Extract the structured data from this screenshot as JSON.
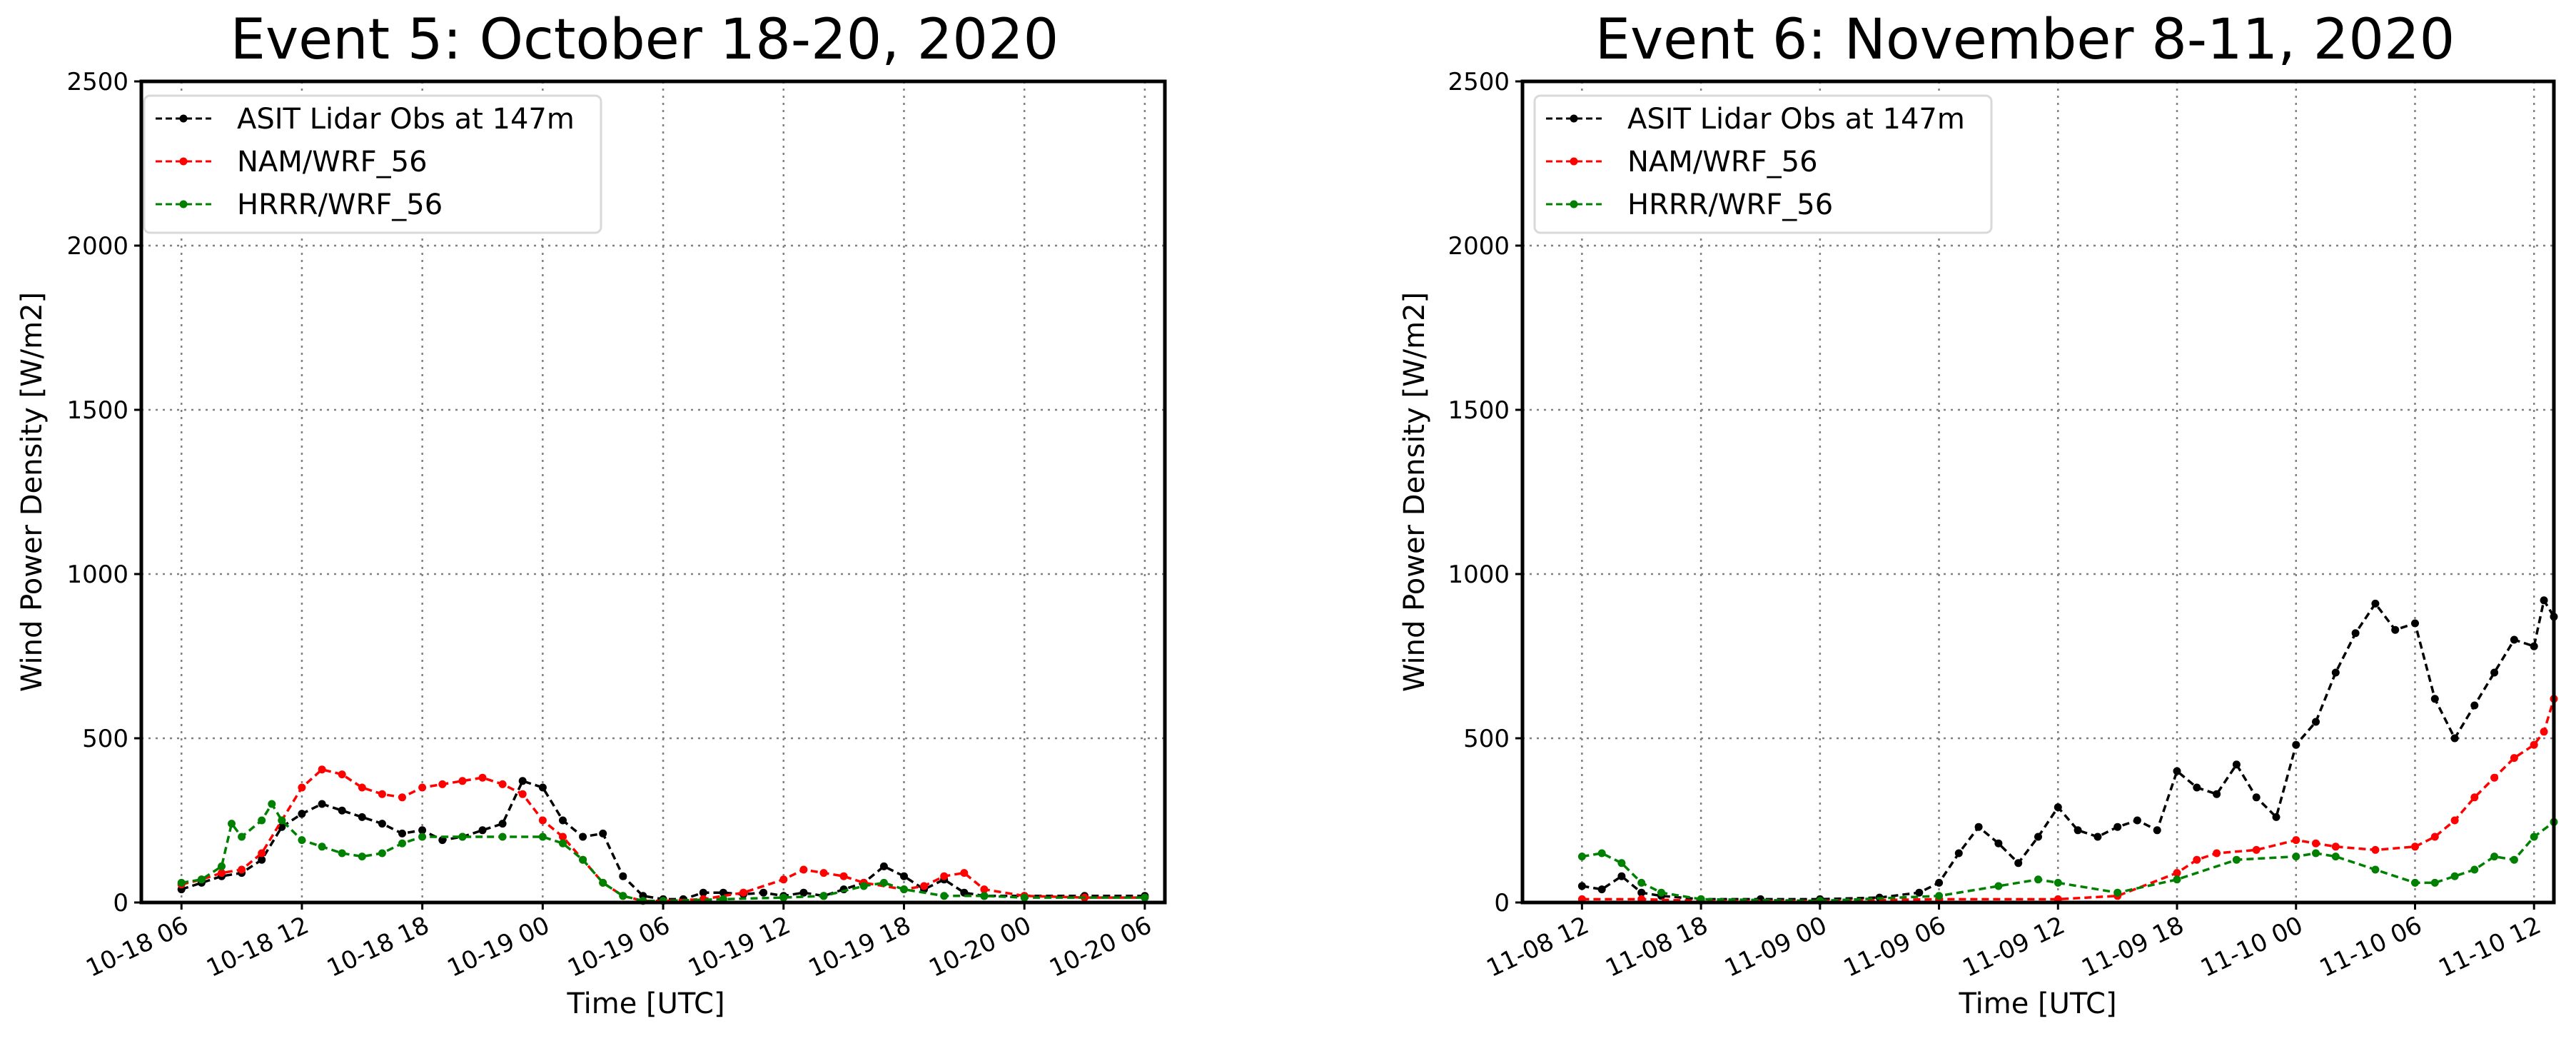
{
  "chart_data": [
    {
      "type": "line",
      "title": "Event 5: October 18-20, 2020",
      "xlabel": "Time [UTC]",
      "ylabel": "Wind Power Density [W/m2]",
      "xlim": [
        "2020-10-18 04:00",
        "2020-10-20 07:00"
      ],
      "ylim": [
        0,
        2500
      ],
      "yticks": [
        0,
        500,
        1000,
        1500,
        2000,
        2500
      ],
      "xticks": [
        "2020-10-18 06:00",
        "2020-10-18 12:00",
        "2020-10-18 18:00",
        "2020-10-19 00:00",
        "2020-10-19 06:00",
        "2020-10-19 12:00",
        "2020-10-19 18:00",
        "2020-10-20 00:00",
        "2020-10-20 06:00"
      ],
      "xtick_labels": [
        "10-18 06",
        "10-18 12",
        "10-18 18",
        "10-19 00",
        "10-19 06",
        "10-19 12",
        "10-19 18",
        "10-20 00",
        "10-20 06"
      ],
      "grid": true,
      "legend_position": "top-left",
      "series": [
        {
          "name": "ASIT Lidar Obs at 147m",
          "color": "#000000",
          "points": [
            [
              "2020-10-18 06:00",
              40
            ],
            [
              "2020-10-18 07:00",
              60
            ],
            [
              "2020-10-18 08:00",
              80
            ],
            [
              "2020-10-18 09:00",
              90
            ],
            [
              "2020-10-18 10:00",
              130
            ],
            [
              "2020-10-18 11:00",
              230
            ],
            [
              "2020-10-18 12:00",
              270
            ],
            [
              "2020-10-18 13:00",
              300
            ],
            [
              "2020-10-18 14:00",
              280
            ],
            [
              "2020-10-18 15:00",
              260
            ],
            [
              "2020-10-18 16:00",
              240
            ],
            [
              "2020-10-18 17:00",
              210
            ],
            [
              "2020-10-18 18:00",
              220
            ],
            [
              "2020-10-18 19:00",
              190
            ],
            [
              "2020-10-18 20:00",
              200
            ],
            [
              "2020-10-18 21:00",
              220
            ],
            [
              "2020-10-18 22:00",
              240
            ],
            [
              "2020-10-18 23:00",
              370
            ],
            [
              "2020-10-19 00:00",
              350
            ],
            [
              "2020-10-19 01:00",
              250
            ],
            [
              "2020-10-19 02:00",
              200
            ],
            [
              "2020-10-19 03:00",
              210
            ],
            [
              "2020-10-19 04:00",
              80
            ],
            [
              "2020-10-19 05:00",
              20
            ],
            [
              "2020-10-19 06:00",
              10
            ],
            [
              "2020-10-19 07:00",
              10
            ],
            [
              "2020-10-19 08:00",
              30
            ],
            [
              "2020-10-19 09:00",
              30
            ],
            [
              "2020-10-19 10:00",
              25
            ],
            [
              "2020-10-19 11:00",
              30
            ],
            [
              "2020-10-19 12:00",
              20
            ],
            [
              "2020-10-19 13:00",
              30
            ],
            [
              "2020-10-19 14:00",
              20
            ],
            [
              "2020-10-19 15:00",
              40
            ],
            [
              "2020-10-19 16:00",
              60
            ],
            [
              "2020-10-19 17:00",
              110
            ],
            [
              "2020-10-19 18:00",
              80
            ],
            [
              "2020-10-19 19:00",
              40
            ],
            [
              "2020-10-19 20:00",
              70
            ],
            [
              "2020-10-19 21:00",
              30
            ],
            [
              "2020-10-19 22:00",
              20
            ],
            [
              "2020-10-20 00:00",
              20
            ],
            [
              "2020-10-20 03:00",
              20
            ],
            [
              "2020-10-20 06:00",
              20
            ]
          ]
        },
        {
          "name": "NAM/WRF_56",
          "color": "#ff0000",
          "points": [
            [
              "2020-10-18 06:00",
              55
            ],
            [
              "2020-10-18 07:00",
              70
            ],
            [
              "2020-10-18 08:00",
              90
            ],
            [
              "2020-10-18 09:00",
              100
            ],
            [
              "2020-10-18 10:00",
              150
            ],
            [
              "2020-10-18 11:00",
              250
            ],
            [
              "2020-10-18 12:00",
              350
            ],
            [
              "2020-10-18 13:00",
              405
            ],
            [
              "2020-10-18 14:00",
              390
            ],
            [
              "2020-10-18 15:00",
              350
            ],
            [
              "2020-10-18 16:00",
              330
            ],
            [
              "2020-10-18 17:00",
              320
            ],
            [
              "2020-10-18 18:00",
              350
            ],
            [
              "2020-10-18 19:00",
              360
            ],
            [
              "2020-10-18 20:00",
              370
            ],
            [
              "2020-10-18 21:00",
              380
            ],
            [
              "2020-10-18 22:00",
              360
            ],
            [
              "2020-10-18 23:00",
              330
            ],
            [
              "2020-10-19 00:00",
              250
            ],
            [
              "2020-10-19 01:00",
              200
            ],
            [
              "2020-10-19 02:00",
              130
            ],
            [
              "2020-10-19 03:00",
              60
            ],
            [
              "2020-10-19 04:00",
              20
            ],
            [
              "2020-10-19 05:00",
              5
            ],
            [
              "2020-10-19 06:00",
              5
            ],
            [
              "2020-10-19 08:00",
              10
            ],
            [
              "2020-10-19 10:00",
              30
            ],
            [
              "2020-10-19 12:00",
              70
            ],
            [
              "2020-10-19 13:00",
              100
            ],
            [
              "2020-10-19 14:00",
              90
            ],
            [
              "2020-10-19 15:00",
              80
            ],
            [
              "2020-10-19 16:00",
              60
            ],
            [
              "2020-10-19 18:00",
              40
            ],
            [
              "2020-10-19 19:00",
              50
            ],
            [
              "2020-10-19 20:00",
              80
            ],
            [
              "2020-10-19 21:00",
              90
            ],
            [
              "2020-10-19 22:00",
              40
            ],
            [
              "2020-10-20 00:00",
              20
            ],
            [
              "2020-10-20 03:00",
              15
            ],
            [
              "2020-10-20 06:00",
              15
            ]
          ]
        },
        {
          "name": "HRRR/WRF_56",
          "color": "#008000",
          "points": [
            [
              "2020-10-18 06:00",
              60
            ],
            [
              "2020-10-18 07:00",
              70
            ],
            [
              "2020-10-18 08:00",
              110
            ],
            [
              "2020-10-18 08:30",
              240
            ],
            [
              "2020-10-18 09:00",
              200
            ],
            [
              "2020-10-18 10:00",
              250
            ],
            [
              "2020-10-18 10:30",
              300
            ],
            [
              "2020-10-18 11:00",
              250
            ],
            [
              "2020-10-18 12:00",
              190
            ],
            [
              "2020-10-18 13:00",
              170
            ],
            [
              "2020-10-18 14:00",
              150
            ],
            [
              "2020-10-18 15:00",
              140
            ],
            [
              "2020-10-18 16:00",
              150
            ],
            [
              "2020-10-18 17:00",
              180
            ],
            [
              "2020-10-18 18:00",
              200
            ],
            [
              "2020-10-18 20:00",
              200
            ],
            [
              "2020-10-18 22:00",
              200
            ],
            [
              "2020-10-19 00:00",
              200
            ],
            [
              "2020-10-19 01:00",
              180
            ],
            [
              "2020-10-19 02:00",
              130
            ],
            [
              "2020-10-19 03:00",
              60
            ],
            [
              "2020-10-19 04:00",
              20
            ],
            [
              "2020-10-19 05:00",
              5
            ],
            [
              "2020-10-19 06:00",
              5
            ],
            [
              "2020-10-19 09:00",
              10
            ],
            [
              "2020-10-19 12:00",
              15
            ],
            [
              "2020-10-19 14:00",
              20
            ],
            [
              "2020-10-19 16:00",
              50
            ],
            [
              "2020-10-19 17:00",
              60
            ],
            [
              "2020-10-19 18:00",
              40
            ],
            [
              "2020-10-19 20:00",
              20
            ],
            [
              "2020-10-19 22:00",
              20
            ],
            [
              "2020-10-20 00:00",
              15
            ],
            [
              "2020-10-20 06:00",
              15
            ]
          ]
        }
      ]
    },
    {
      "type": "line",
      "title": "Event 6: November 8-11, 2020",
      "xlabel": "Time [UTC]",
      "ylabel": "Wind Power Density [W/m2]",
      "xlim": [
        "2020-11-08 09:00",
        "2020-11-10 13:00"
      ],
      "ylim": [
        0,
        2500
      ],
      "yticks": [
        0,
        500,
        1000,
        1500,
        2000,
        2500
      ],
      "xticks": [
        "2020-11-08 12:00",
        "2020-11-08 18:00",
        "2020-11-09 00:00",
        "2020-11-09 06:00",
        "2020-11-09 12:00",
        "2020-11-09 18:00",
        "2020-11-10 00:00",
        "2020-11-10 06:00",
        "2020-11-10 12:00"
      ],
      "xtick_labels": [
        "11-08 12",
        "11-08 18",
        "11-09 00",
        "11-09 06",
        "11-09 12",
        "11-09 18",
        "11-10 00",
        "11-10 06",
        "11-10 12"
      ],
      "grid": true,
      "legend_position": "top-left",
      "series": [
        {
          "name": "ASIT Lidar Obs at 147m",
          "color": "#000000",
          "points": [
            [
              "2020-11-08 12:00",
              50
            ],
            [
              "2020-11-08 13:00",
              40
            ],
            [
              "2020-11-08 14:00",
              80
            ],
            [
              "2020-11-08 15:00",
              30
            ],
            [
              "2020-11-08 16:00",
              20
            ],
            [
              "2020-11-08 18:00",
              10
            ],
            [
              "2020-11-08 21:00",
              10
            ],
            [
              "2020-11-09 00:00",
              10
            ],
            [
              "2020-11-09 03:00",
              15
            ],
            [
              "2020-11-09 05:00",
              30
            ],
            [
              "2020-11-09 06:00",
              60
            ],
            [
              "2020-11-09 07:00",
              150
            ],
            [
              "2020-11-09 08:00",
              230
            ],
            [
              "2020-11-09 09:00",
              180
            ],
            [
              "2020-11-09 10:00",
              120
            ],
            [
              "2020-11-09 11:00",
              200
            ],
            [
              "2020-11-09 12:00",
              290
            ],
            [
              "2020-11-09 13:00",
              220
            ],
            [
              "2020-11-09 14:00",
              200
            ],
            [
              "2020-11-09 15:00",
              230
            ],
            [
              "2020-11-09 16:00",
              250
            ],
            [
              "2020-11-09 17:00",
              220
            ],
            [
              "2020-11-09 18:00",
              400
            ],
            [
              "2020-11-09 19:00",
              350
            ],
            [
              "2020-11-09 20:00",
              330
            ],
            [
              "2020-11-09 21:00",
              420
            ],
            [
              "2020-11-09 22:00",
              320
            ],
            [
              "2020-11-09 23:00",
              260
            ],
            [
              "2020-11-10 00:00",
              480
            ],
            [
              "2020-11-10 01:00",
              550
            ],
            [
              "2020-11-10 02:00",
              700
            ],
            [
              "2020-11-10 03:00",
              820
            ],
            [
              "2020-11-10 04:00",
              910
            ],
            [
              "2020-11-10 05:00",
              830
            ],
            [
              "2020-11-10 06:00",
              850
            ],
            [
              "2020-11-10 07:00",
              620
            ],
            [
              "2020-11-10 08:00",
              500
            ],
            [
              "2020-11-10 09:00",
              600
            ],
            [
              "2020-11-10 10:00",
              700
            ],
            [
              "2020-11-10 11:00",
              800
            ],
            [
              "2020-11-10 12:00",
              780
            ],
            [
              "2020-11-10 12:30",
              920
            ],
            [
              "2020-11-10 13:00",
              870
            ]
          ]
        },
        {
          "name": "NAM/WRF_56",
          "color": "#ff0000",
          "points": [
            [
              "2020-11-08 12:00",
              10
            ],
            [
              "2020-11-08 15:00",
              10
            ],
            [
              "2020-11-08 18:00",
              5
            ],
            [
              "2020-11-09 00:00",
              5
            ],
            [
              "2020-11-09 06:00",
              10
            ],
            [
              "2020-11-09 12:00",
              10
            ],
            [
              "2020-11-09 15:00",
              20
            ],
            [
              "2020-11-09 18:00",
              90
            ],
            [
              "2020-11-09 19:00",
              130
            ],
            [
              "2020-11-09 20:00",
              150
            ],
            [
              "2020-11-09 22:00",
              160
            ],
            [
              "2020-11-10 00:00",
              190
            ],
            [
              "2020-11-10 01:00",
              180
            ],
            [
              "2020-11-10 02:00",
              170
            ],
            [
              "2020-11-10 04:00",
              160
            ],
            [
              "2020-11-10 06:00",
              170
            ],
            [
              "2020-11-10 07:00",
              200
            ],
            [
              "2020-11-10 08:00",
              250
            ],
            [
              "2020-11-10 09:00",
              320
            ],
            [
              "2020-11-10 10:00",
              380
            ],
            [
              "2020-11-10 11:00",
              440
            ],
            [
              "2020-11-10 12:00",
              480
            ],
            [
              "2020-11-10 12:30",
              520
            ],
            [
              "2020-11-10 13:00",
              620
            ]
          ]
        },
        {
          "name": "HRRR/WRF_56",
          "color": "#008000",
          "points": [
            [
              "2020-11-08 12:00",
              140
            ],
            [
              "2020-11-08 13:00",
              150
            ],
            [
              "2020-11-08 14:00",
              120
            ],
            [
              "2020-11-08 15:00",
              60
            ],
            [
              "2020-11-08 16:00",
              30
            ],
            [
              "2020-11-08 18:00",
              10
            ],
            [
              "2020-11-09 00:00",
              5
            ],
            [
              "2020-11-09 06:00",
              20
            ],
            [
              "2020-11-09 09:00",
              50
            ],
            [
              "2020-11-09 11:00",
              70
            ],
            [
              "2020-11-09 12:00",
              60
            ],
            [
              "2020-11-09 15:00",
              30
            ],
            [
              "2020-11-09 18:00",
              70
            ],
            [
              "2020-11-09 21:00",
              130
            ],
            [
              "2020-11-10 00:00",
              140
            ],
            [
              "2020-11-10 01:00",
              150
            ],
            [
              "2020-11-10 02:00",
              140
            ],
            [
              "2020-11-10 04:00",
              100
            ],
            [
              "2020-11-10 06:00",
              60
            ],
            [
              "2020-11-10 07:00",
              60
            ],
            [
              "2020-11-10 08:00",
              80
            ],
            [
              "2020-11-10 09:00",
              100
            ],
            [
              "2020-11-10 10:00",
              140
            ],
            [
              "2020-11-10 11:00",
              130
            ],
            [
              "2020-11-10 12:00",
              200
            ],
            [
              "2020-11-10 13:00",
              245
            ]
          ]
        }
      ]
    }
  ]
}
